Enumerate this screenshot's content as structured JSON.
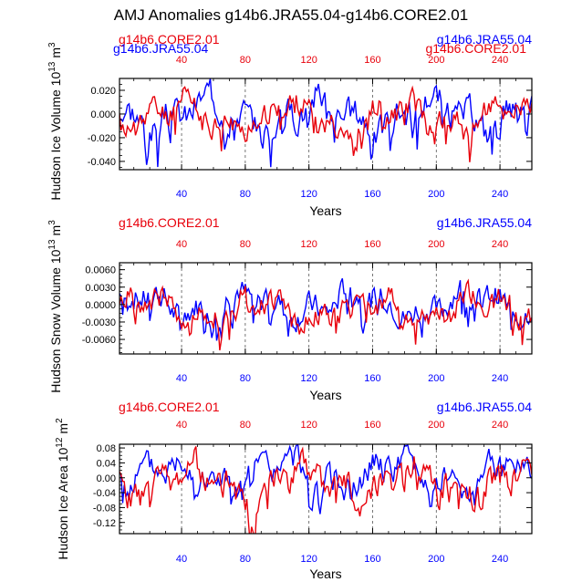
{
  "title": "AMJ Anomalies g14b6.JRA55.04-g14b6.CORE2.01",
  "colors": {
    "red": "#e8000b",
    "blue": "#0000ff",
    "axis": "#000000",
    "grid": "#555555"
  },
  "chart_data": [
    {
      "type": "line",
      "panel": "top",
      "ylabel": "Hudson Ice Volume 10",
      "ylabel_exp": "13",
      "ylabel_unit": "m",
      "ylabel_unit_exp": "3",
      "xlabel": "Years",
      "xlim": [
        1,
        260
      ],
      "ylim": [
        -0.047,
        0.03
      ],
      "yticks": [
        0.02,
        0.0,
        -0.02,
        -0.04
      ],
      "ytick_labels": [
        "0.020",
        "0.000",
        "-0.020",
        "-0.040"
      ],
      "xticks": [
        40,
        80,
        120,
        160,
        200,
        240
      ],
      "xtick_labels": [
        "40",
        "80",
        "120",
        "160",
        "200",
        "240"
      ],
      "legend": [
        "g14b6.CORE2.01",
        "g14b6.JRA55.04",
        "g14b6.JRA55.04",
        "g14b6.CORE2.01"
      ],
      "series": [
        {
          "name": "g14b6.JRA55.04",
          "color": "blue",
          "amp": 0.038,
          "offset": 0.001,
          "seed": 3
        },
        {
          "name": "g14b6.CORE2.01",
          "color": "red",
          "amp": 0.033,
          "offset": -0.002,
          "seed": 11
        }
      ]
    },
    {
      "type": "line",
      "panel": "middle",
      "ylabel": "Hudson Snow Volume 10",
      "ylabel_exp": "13",
      "ylabel_unit": "m",
      "ylabel_unit_exp": "3",
      "xlabel": "Years",
      "xlim": [
        1,
        260
      ],
      "ylim": [
        -0.0085,
        0.0072
      ],
      "yticks": [
        0.006,
        0.003,
        0.0,
        -0.003,
        -0.006
      ],
      "ytick_labels": [
        "0.0060",
        "0.0030",
        "0.0000",
        "-0.0030",
        "-0.0060"
      ],
      "xticks": [
        40,
        80,
        120,
        160,
        200,
        240
      ],
      "xtick_labels": [
        "40",
        "80",
        "120",
        "160",
        "200",
        "240"
      ],
      "legend": [
        "g14b6.CORE2.01",
        "g14b6.JRA55.04"
      ],
      "series": [
        {
          "name": "g14b6.JRA55.04",
          "color": "blue",
          "amp": 0.0068,
          "offset": 0.0003,
          "seed": 7
        },
        {
          "name": "g14b6.CORE2.01",
          "color": "red",
          "amp": 0.0062,
          "offset": -0.0006,
          "seed": 19
        }
      ]
    },
    {
      "type": "line",
      "panel": "bottom",
      "ylabel": "Hudson Ice Area 10",
      "ylabel_exp": "12",
      "ylabel_unit": "m",
      "ylabel_unit_exp": "2",
      "xlabel": "Years",
      "xlim": [
        1,
        260
      ],
      "ylim": [
        -0.15,
        0.09
      ],
      "yticks": [
        0.08,
        0.04,
        0.0,
        -0.04,
        -0.08,
        -0.12
      ],
      "ytick_labels": [
        "0.08",
        "0.04",
        "0.00",
        "-0.04",
        "-0.08",
        "-0.12"
      ],
      "xticks": [
        40,
        80,
        120,
        160,
        200,
        240
      ],
      "xtick_labels": [
        "40",
        "80",
        "120",
        "160",
        "200",
        "240"
      ],
      "legend": [
        "g14b6.CORE2.01",
        "g14b6.JRA55.04"
      ],
      "series": [
        {
          "name": "g14b6.JRA55.04",
          "color": "blue",
          "amp": 0.11,
          "offset": 0.01,
          "seed": 5
        },
        {
          "name": "g14b6.CORE2.01",
          "color": "red",
          "amp": 0.12,
          "offset": -0.01,
          "seed": 23
        }
      ]
    }
  ]
}
